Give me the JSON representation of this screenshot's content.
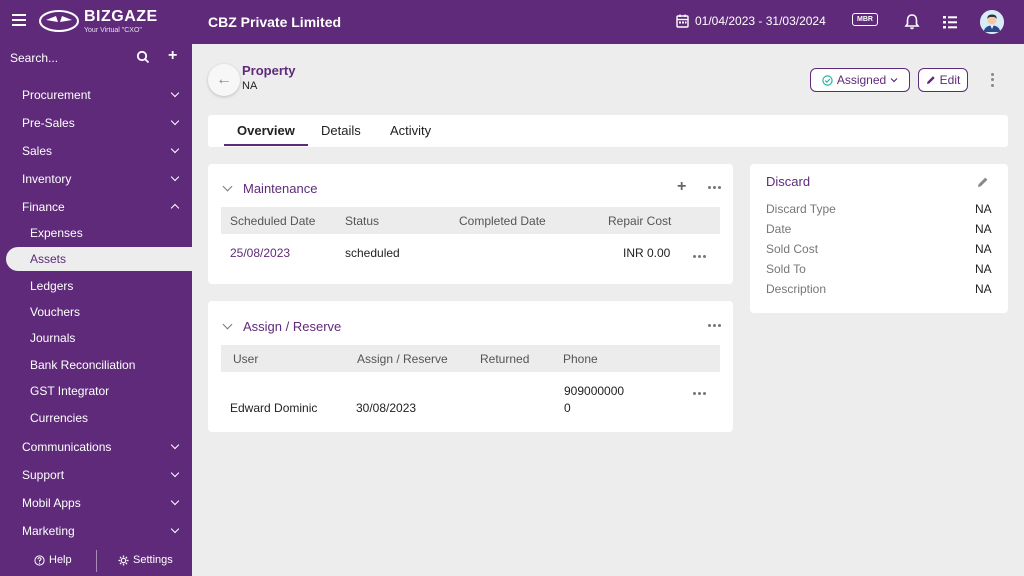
{
  "header": {
    "logo_title": "BIZGAZE",
    "logo_sub": "Your Virtual \"CXO\"",
    "company": "CBZ Private Limited",
    "date_range": "01/04/2023 - 31/03/2024",
    "mbr": "MBR"
  },
  "sidebar": {
    "search_placeholder": "Search...",
    "items": [
      {
        "label": "Procurement"
      },
      {
        "label": "Pre-Sales"
      },
      {
        "label": "Sales"
      },
      {
        "label": "Inventory"
      },
      {
        "label": "Finance"
      },
      {
        "label": "Expenses"
      },
      {
        "label": "Assets"
      },
      {
        "label": "Ledgers"
      },
      {
        "label": "Vouchers"
      },
      {
        "label": "Journals"
      },
      {
        "label": "Bank Reconciliation"
      },
      {
        "label": "GST Integrator"
      },
      {
        "label": "Currencies"
      },
      {
        "label": "Communications"
      },
      {
        "label": "Support"
      },
      {
        "label": "Mobil Apps"
      },
      {
        "label": "Marketing"
      }
    ],
    "help": "Help",
    "settings": "Settings"
  },
  "page": {
    "title": "Property",
    "subtitle": "NA",
    "status_button": "Assigned",
    "edit_button": "Edit"
  },
  "tabs": [
    "Overview",
    "Details",
    "Activity"
  ],
  "maintenance": {
    "title": "Maintenance",
    "columns": [
      "Scheduled Date",
      "Status",
      "Completed Date",
      "Repair Cost"
    ],
    "rows": [
      {
        "scheduled_date": "25/08/2023",
        "status": "scheduled",
        "completed_date": "",
        "repair_cost": "INR 0.00"
      }
    ]
  },
  "assign": {
    "title": "Assign / Reserve",
    "columns": [
      "User",
      "Assign / Reserve",
      "Returned",
      "Phone"
    ],
    "rows": [
      {
        "user": "Edward Dominic",
        "assign_reserve": "30/08/2023",
        "returned": "",
        "phone_line1": "909000000",
        "phone_line2": "0"
      }
    ]
  },
  "discard": {
    "title": "Discard",
    "fields": [
      {
        "label": "Discard Type",
        "value": "NA"
      },
      {
        "label": "Date",
        "value": "NA"
      },
      {
        "label": "Sold Cost",
        "value": "NA"
      },
      {
        "label": "Sold To",
        "value": "NA"
      },
      {
        "label": "Description",
        "value": "NA"
      }
    ]
  },
  "colors": {
    "brand": "#5f2a7a",
    "background": "#ededed",
    "status_check": "#2bb3a3"
  }
}
